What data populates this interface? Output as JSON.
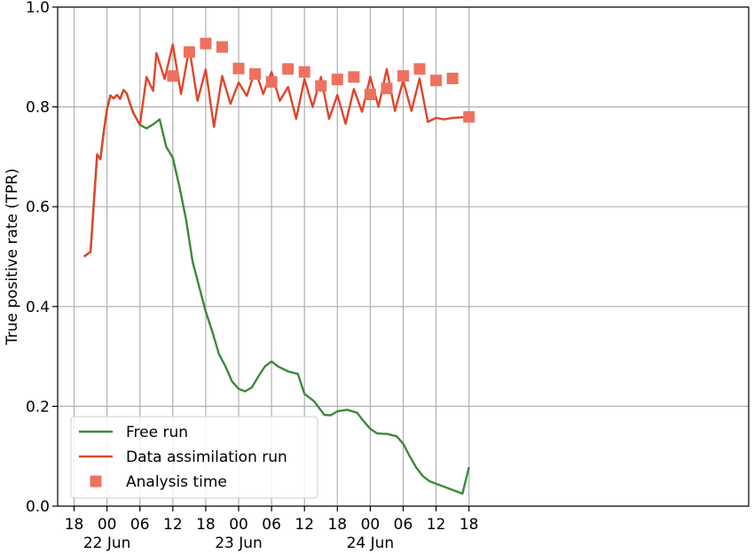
{
  "chart_data": {
    "type": "line",
    "xlabel": "",
    "ylabel": "True positive rate (TPR)",
    "xlim": [
      -1.5,
      19.5
    ],
    "ylim": [
      0.0,
      1.0
    ],
    "grid": true,
    "legend_position": "lower-left",
    "x_ticks": [
      {
        "x": -1,
        "label": "18",
        "sublabel": ""
      },
      {
        "x": 0,
        "label": "00",
        "sublabel": "22 Jun"
      },
      {
        "x": 1,
        "label": "06",
        "sublabel": ""
      },
      {
        "x": 2,
        "label": "12",
        "sublabel": ""
      },
      {
        "x": 3,
        "label": "18",
        "sublabel": ""
      },
      {
        "x": 4,
        "label": "00",
        "sublabel": "23 Jun"
      },
      {
        "x": 5,
        "label": "06",
        "sublabel": ""
      },
      {
        "x": 6,
        "label": "12",
        "sublabel": ""
      },
      {
        "x": 7,
        "label": "18",
        "sublabel": ""
      },
      {
        "x": 8,
        "label": "00",
        "sublabel": "24 Jun"
      },
      {
        "x": 9,
        "label": "06",
        "sublabel": ""
      },
      {
        "x": 10,
        "label": "12",
        "sublabel": ""
      },
      {
        "x": 11,
        "label": "18",
        "sublabel": ""
      }
    ],
    "y_ticks": [
      {
        "y": 0.0,
        "label": "0.0"
      },
      {
        "y": 0.2,
        "label": "0.2"
      },
      {
        "y": 0.4,
        "label": "0.4"
      },
      {
        "y": 0.6,
        "label": "0.6"
      },
      {
        "y": 0.8,
        "label": "0.8"
      },
      {
        "y": 1.0,
        "label": "1.0"
      }
    ],
    "series": [
      {
        "name": "Free run",
        "color": "#3a8a3a",
        "kind": "line",
        "x": [
          -0.7,
          -0.5,
          -0.3,
          -0.2,
          -0.1,
          0.0,
          0.1,
          0.2,
          0.3,
          0.4,
          0.5,
          0.6,
          0.7,
          0.8,
          1.0,
          1.2,
          1.4,
          1.6,
          1.8,
          2.0,
          2.2,
          2.4,
          2.6,
          2.8,
          3.0,
          3.2,
          3.4,
          3.6,
          3.8,
          4.0,
          4.2,
          4.4,
          4.6,
          4.8,
          5.0,
          5.2,
          5.5,
          5.8,
          6.0,
          6.3,
          6.6,
          6.8,
          7.0,
          7.3,
          7.6,
          7.8,
          8.0,
          8.2,
          8.4,
          8.5,
          8.8,
          9.0,
          9.2,
          9.4,
          9.6,
          9.8,
          10.0,
          10.2,
          10.4,
          10.6,
          10.8,
          11.0
        ],
        "y": [
          0.5,
          0.51,
          0.705,
          0.695,
          0.75,
          0.795,
          0.823,
          0.817,
          0.824,
          0.816,
          0.834,
          0.827,
          0.806,
          0.788,
          0.764,
          0.757,
          0.765,
          0.775,
          0.72,
          0.698,
          0.64,
          0.575,
          0.49,
          0.44,
          0.39,
          0.35,
          0.305,
          0.28,
          0.25,
          0.235,
          0.23,
          0.238,
          0.26,
          0.28,
          0.29,
          0.28,
          0.27,
          0.265,
          0.225,
          0.21,
          0.183,
          0.182,
          0.19,
          0.193,
          0.187,
          0.17,
          0.155,
          0.146,
          0.145,
          0.145,
          0.14,
          0.125,
          0.1,
          0.077,
          0.06,
          0.05,
          0.045,
          0.04,
          0.035,
          0.03,
          0.025,
          0.078
        ]
      },
      {
        "name": "Data assimilation run",
        "color": "#e0452b",
        "kind": "line",
        "x": [
          -0.7,
          -0.5,
          -0.3,
          -0.2,
          -0.1,
          0.0,
          0.1,
          0.2,
          0.3,
          0.4,
          0.5,
          0.6,
          0.7,
          0.8,
          1.0,
          1.2,
          1.4,
          1.5,
          1.75,
          2.0,
          2.25,
          2.5,
          2.75,
          3.0,
          3.25,
          3.5,
          3.75,
          4.0,
          4.25,
          4.5,
          4.75,
          5.0,
          5.25,
          5.5,
          5.75,
          6.0,
          6.25,
          6.5,
          6.75,
          7.0,
          7.25,
          7.5,
          7.75,
          8.0,
          8.25,
          8.5,
          8.75,
          9.0,
          9.25,
          9.5,
          9.75,
          10.0,
          10.25,
          10.5,
          10.75,
          11.0
        ],
        "y": [
          0.5,
          0.51,
          0.705,
          0.695,
          0.75,
          0.795,
          0.823,
          0.817,
          0.824,
          0.816,
          0.834,
          0.827,
          0.806,
          0.788,
          0.764,
          0.86,
          0.832,
          0.908,
          0.856,
          0.925,
          0.826,
          0.918,
          0.812,
          0.875,
          0.76,
          0.862,
          0.806,
          0.849,
          0.822,
          0.874,
          0.826,
          0.87,
          0.812,
          0.84,
          0.776,
          0.856,
          0.8,
          0.86,
          0.776,
          0.824,
          0.766,
          0.836,
          0.79,
          0.86,
          0.8,
          0.876,
          0.792,
          0.853,
          0.792,
          0.857,
          0.77,
          0.778,
          0.775,
          0.778,
          0.779,
          0.78
        ]
      },
      {
        "name": "Analysis time",
        "color": "#ee7160",
        "kind": "marker",
        "x": [
          2.0,
          2.5,
          3.0,
          3.5,
          4.0,
          4.5,
          5.0,
          5.5,
          6.0,
          6.5,
          7.0,
          7.5,
          8.0,
          8.5,
          9.0,
          9.5,
          10.0,
          10.5,
          11.0
        ],
        "y": [
          0.862,
          0.91,
          0.927,
          0.92,
          0.877,
          0.866,
          0.85,
          0.876,
          0.87,
          0.842,
          0.855,
          0.86,
          0.825,
          0.837,
          0.862,
          0.876,
          0.853,
          0.857,
          0.78
        ]
      }
    ]
  }
}
